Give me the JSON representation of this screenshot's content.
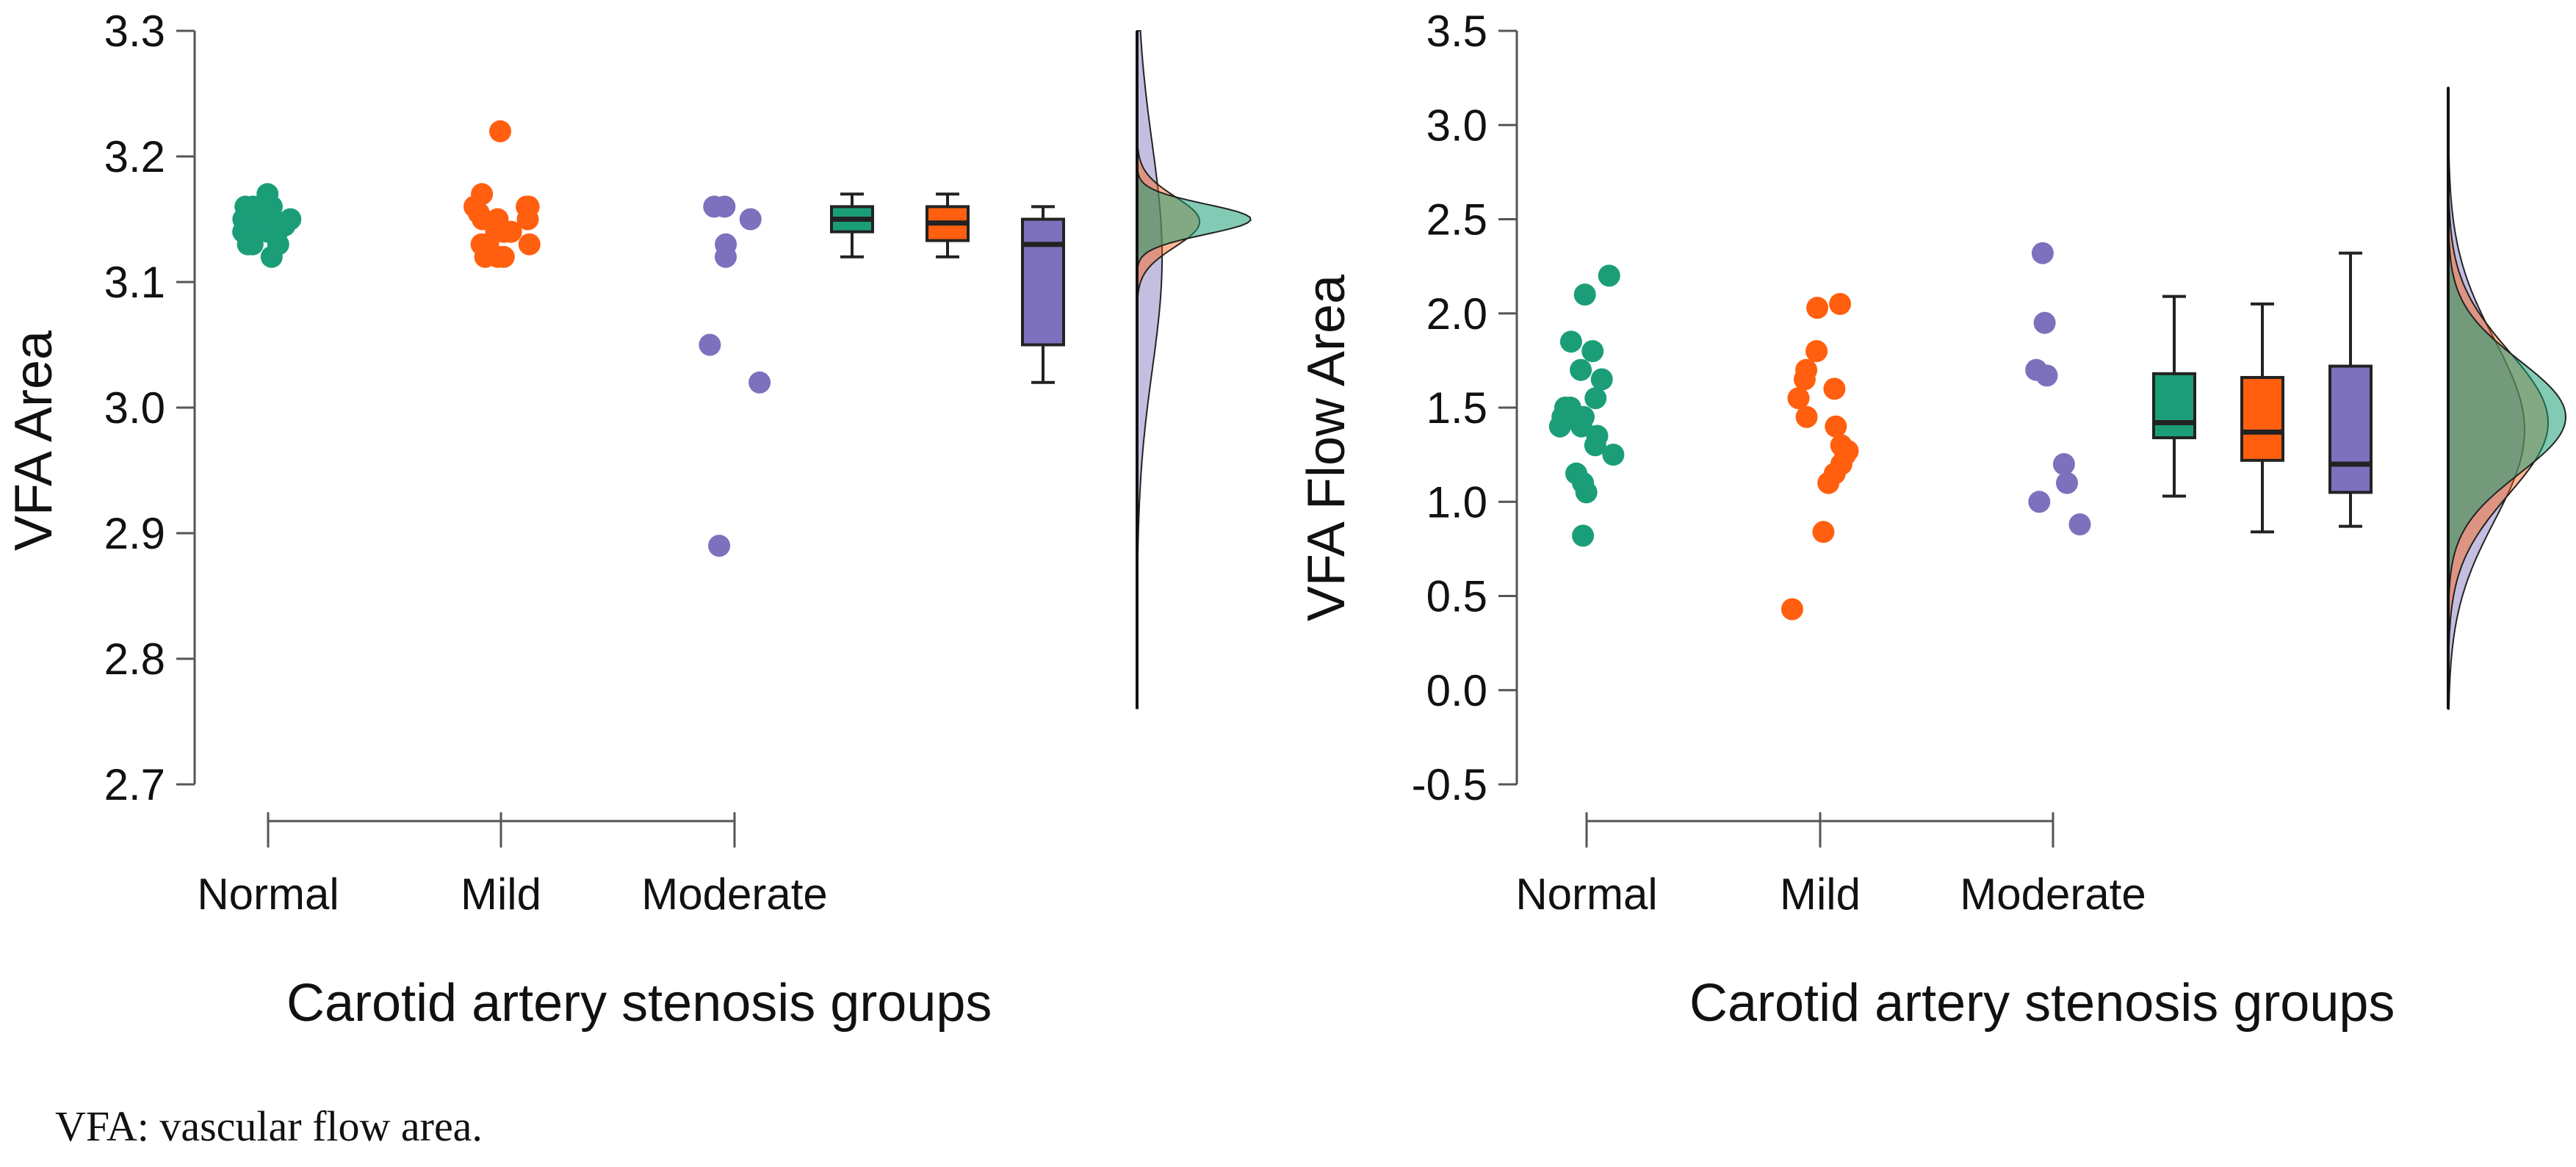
{
  "caption": "VFA: vascular flow area.",
  "colors": {
    "Normal": "#1b9e77",
    "Mild": "#ff5f0f",
    "Moderate": "#7d70bd"
  },
  "chart_data": [
    {
      "type": "raincloud",
      "title": "",
      "xlabel": "Carotid artery stenosis groups",
      "ylabel": "VFA Area",
      "categories": [
        "Normal",
        "Mild",
        "Moderate"
      ],
      "ylim": [
        2.7,
        3.3
      ],
      "yticks": [
        3.3,
        3.2,
        3.1,
        3.0,
        2.9,
        2.8,
        2.7
      ],
      "ytick_labels": [
        "3.3",
        "3.2",
        "3.1",
        "3.0",
        "2.9",
        "2.8",
        "2.7"
      ],
      "points": {
        "Normal": [
          3.17,
          3.16,
          3.16,
          3.16,
          3.16,
          3.155,
          3.15,
          3.15,
          3.15,
          3.15,
          3.145,
          3.145,
          3.14,
          3.14,
          3.14,
          3.13,
          3.13,
          3.13,
          3.12
        ],
        "Mild": [
          3.22,
          3.17,
          3.16,
          3.16,
          3.16,
          3.155,
          3.15,
          3.15,
          3.15,
          3.14,
          3.14,
          3.14,
          3.13,
          3.13,
          3.13,
          3.12,
          3.12,
          3.12
        ],
        "Moderate": [
          3.16,
          3.16,
          3.15,
          3.13,
          3.12,
          3.05,
          3.02,
          2.89
        ]
      },
      "boxplots": {
        "Normal": {
          "min": 3.12,
          "q1": 3.14,
          "median": 3.15,
          "q3": 3.16,
          "max": 3.17
        },
        "Mild": {
          "min": 3.12,
          "q1": 3.133,
          "median": 3.147,
          "q3": 3.16,
          "max": 3.17
        },
        "Moderate": {
          "min": 3.02,
          "q1": 3.05,
          "median": 3.13,
          "q3": 3.15,
          "max": 3.16
        }
      },
      "density": {
        "Normal": {
          "mean": 3.15,
          "sd": 0.012,
          "scale": 1.0
        },
        "Mild": {
          "mean": 3.148,
          "sd": 0.02,
          "scale": 0.55
        },
        "Moderate": {
          "mean": 3.12,
          "sd": 0.09,
          "scale": 0.22
        }
      },
      "density_extent": [
        2.76,
        3.3
      ]
    },
    {
      "type": "raincloud",
      "title": "",
      "xlabel": "Carotid artery stenosis groups",
      "ylabel": "VFA Flow Area",
      "categories": [
        "Normal",
        "Mild",
        "Moderate"
      ],
      "ylim": [
        -0.5,
        3.5
      ],
      "yticks": [
        3.5,
        3.0,
        2.5,
        2.0,
        1.5,
        1.0,
        0.5,
        0.0,
        -0.5
      ],
      "ytick_labels": [
        "3.5",
        "3.0",
        "2.5",
        "2.0",
        "1.5",
        "1.0",
        "0.5",
        "0.0",
        "-0.5"
      ],
      "points": {
        "Normal": [
          2.2,
          2.1,
          1.85,
          1.8,
          1.7,
          1.65,
          1.55,
          1.5,
          1.5,
          1.45,
          1.45,
          1.4,
          1.4,
          1.35,
          1.3,
          1.25,
          1.15,
          1.1,
          1.05,
          0.82
        ],
        "Mild": [
          2.05,
          2.03,
          1.8,
          1.7,
          1.65,
          1.6,
          1.55,
          1.45,
          1.4,
          1.3,
          1.27,
          1.25,
          1.2,
          1.15,
          1.1,
          0.84,
          0.43
        ],
        "Moderate": [
          2.32,
          1.95,
          1.7,
          1.67,
          1.2,
          1.1,
          1.0,
          0.88
        ]
      },
      "boxplots": {
        "Normal": {
          "min": 1.03,
          "q1": 1.34,
          "median": 1.42,
          "q3": 1.68,
          "max": 2.09
        },
        "Mild": {
          "min": 0.84,
          "q1": 1.22,
          "median": 1.37,
          "q3": 1.66,
          "max": 2.05
        },
        "Moderate": {
          "min": 0.87,
          "q1": 1.05,
          "median": 1.2,
          "q3": 1.72,
          "max": 2.32
        }
      },
      "density": {
        "Normal": {
          "mean": 1.45,
          "sd": 0.3,
          "scale": 1.0
        },
        "Mild": {
          "mean": 1.42,
          "sd": 0.38,
          "scale": 0.85
        },
        "Moderate": {
          "mean": 1.38,
          "sd": 0.48,
          "scale": 0.65
        }
      },
      "density_extent": [
        -0.1,
        3.2
      ]
    }
  ]
}
